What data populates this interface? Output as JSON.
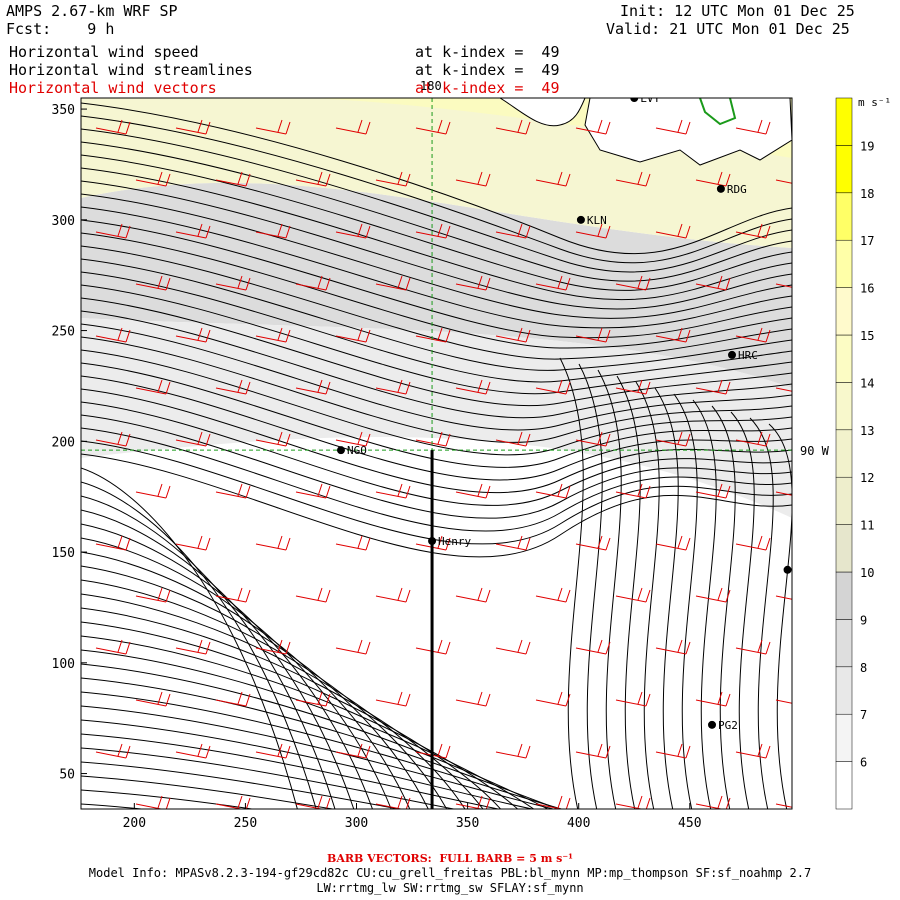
{
  "header": {
    "title": "AMPS 2.67-km WRF SP",
    "forecast": "Fcst:    9 h",
    "init": "Init: 12 UTC Mon 01 Dec 25",
    "valid": "Valid: 21 UTC Mon 01 Dec 25",
    "fields": [
      {
        "name": "Horizontal wind speed",
        "level": "at k-index =  49"
      },
      {
        "name": "Horizontal wind streamlines",
        "level": "at k-index =  49"
      },
      {
        "name": "Horizontal wind vectors",
        "level": "at k-index =  49"
      }
    ]
  },
  "map": {
    "x_ticks": [
      200,
      250,
      300,
      350,
      400,
      450
    ],
    "y_ticks": [
      50,
      100,
      150,
      200,
      250,
      300,
      350
    ],
    "x_range": [
      176,
      496
    ],
    "y_range": [
      34,
      355
    ],
    "meridian_label": "180",
    "parallel_label": "90 W",
    "cross_section_x": 334,
    "stations": [
      {
        "id": "LVT",
        "x": 425,
        "y": 355
      },
      {
        "id": "RDG",
        "x": 464,
        "y": 314
      },
      {
        "id": "KLN",
        "x": 401,
        "y": 300
      },
      {
        "id": "HRC",
        "x": 469,
        "y": 239
      },
      {
        "id": "NGO",
        "x": 293,
        "y": 196
      },
      {
        "id": "Henry",
        "x": 334,
        "y": 155
      },
      {
        "id": "PG2",
        "x": 460,
        "y": 72
      },
      {
        "id": "",
        "x": 494,
        "y": 142
      }
    ]
  },
  "colorbar": {
    "units": "m s⁻¹",
    "levels": [
      6,
      7,
      8,
      9,
      10,
      11,
      12,
      13,
      14,
      15,
      16,
      17,
      18,
      19
    ],
    "colors": [
      "#ffffff",
      "#f4f4f4",
      "#e8e8e8",
      "#dedede",
      "#d4d4d4",
      "#e6e6cc",
      "#eeeecc",
      "#f2f2cc",
      "#f8f8cc",
      "#fcfcc4",
      "#fffacc",
      "#ffffa8",
      "#ffff66",
      "#ffff00",
      "#ffff00"
    ]
  },
  "footer": {
    "barb": "BARB VECTORS:  FULL BARB = 5 m s⁻¹",
    "model_info": "Model Info: MPASv8.2.3-194-gf29cd82c CU:cu_grell_freitas PBL:bl_mynn MP:mp_thompson SF:sf_noahmp 2.7",
    "physics": "LW:rrtmg_lw SW:rrtmg_sw SFLAY:sf_mynn"
  }
}
